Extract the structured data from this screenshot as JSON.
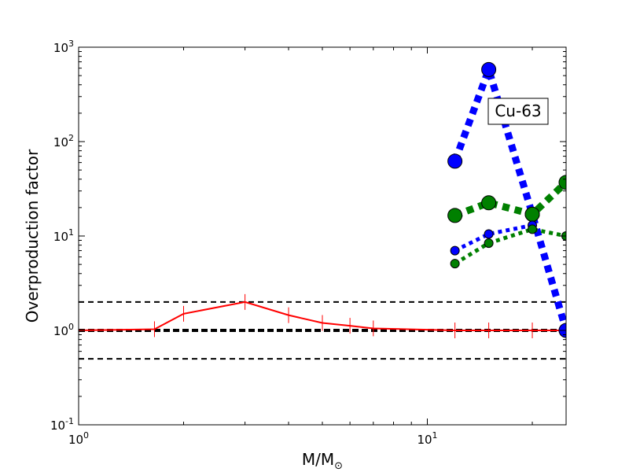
{
  "chart_data": {
    "type": "line",
    "title": "",
    "xlabel": {
      "main": "M/M",
      "subscript": "⊙"
    },
    "ylabel": "Overproduction factor",
    "xscale": "log",
    "yscale": "log",
    "xlim": [
      1,
      25
    ],
    "ylim": [
      0.1,
      1000
    ],
    "grid": false,
    "legend": "none",
    "x_ticks": [
      {
        "base": "10",
        "exp": "0",
        "value": 1
      },
      {
        "base": "10",
        "exp": "1",
        "value": 10
      }
    ],
    "y_ticks": [
      {
        "base": "10",
        "exp": "-1",
        "value": 0.1
      },
      {
        "base": "10",
        "exp": "0",
        "value": 1
      },
      {
        "base": "10",
        "exp": "1",
        "value": 10
      },
      {
        "base": "10",
        "exp": "2",
        "value": 100
      },
      {
        "base": "10",
        "exp": "3",
        "value": 1000
      }
    ],
    "annotation": "Cu-63",
    "reference_lines": [
      {
        "y": 2.0,
        "color": "#000000",
        "style": "dashed",
        "width": 2
      },
      {
        "y": 1.0,
        "color": "#000000",
        "style": "dashed",
        "width": 4
      },
      {
        "y": 0.5,
        "color": "#000000",
        "style": "dashed",
        "width": 2
      }
    ],
    "series": [
      {
        "color": "#ff0000",
        "style": "solid",
        "marker": "vline",
        "x": [
          1.0,
          1.65,
          2.0,
          3.0,
          4.0,
          5.0,
          6.0,
          7.0,
          12.0,
          15.0,
          20.0,
          25.0
        ],
        "y": [
          1.0,
          1.03,
          1.5,
          2.0,
          1.45,
          1.2,
          1.12,
          1.05,
          1.0,
          1.0,
          1.0,
          1.0
        ]
      },
      {
        "color": "#0000ff",
        "style": "dotted-thick",
        "marker": "circle-large",
        "x": [
          12,
          15,
          20,
          25
        ],
        "y": [
          62,
          580,
          17,
          1.0
        ]
      },
      {
        "color": "#008000",
        "style": "dotted-thick",
        "marker": "circle-large",
        "x": [
          12,
          15,
          20,
          25
        ],
        "y": [
          16.5,
          22.5,
          17,
          37
        ]
      },
      {
        "color": "#0000ff",
        "style": "dotted-thin",
        "marker": "circle-small",
        "x": [
          12,
          15,
          20
        ],
        "y": [
          7,
          10.5,
          13
        ]
      },
      {
        "color": "#008000",
        "style": "dotted-thin",
        "marker": "circle-small",
        "x": [
          12,
          15,
          20,
          25
        ],
        "y": [
          5.1,
          8.4,
          11.8,
          10
        ]
      }
    ]
  }
}
